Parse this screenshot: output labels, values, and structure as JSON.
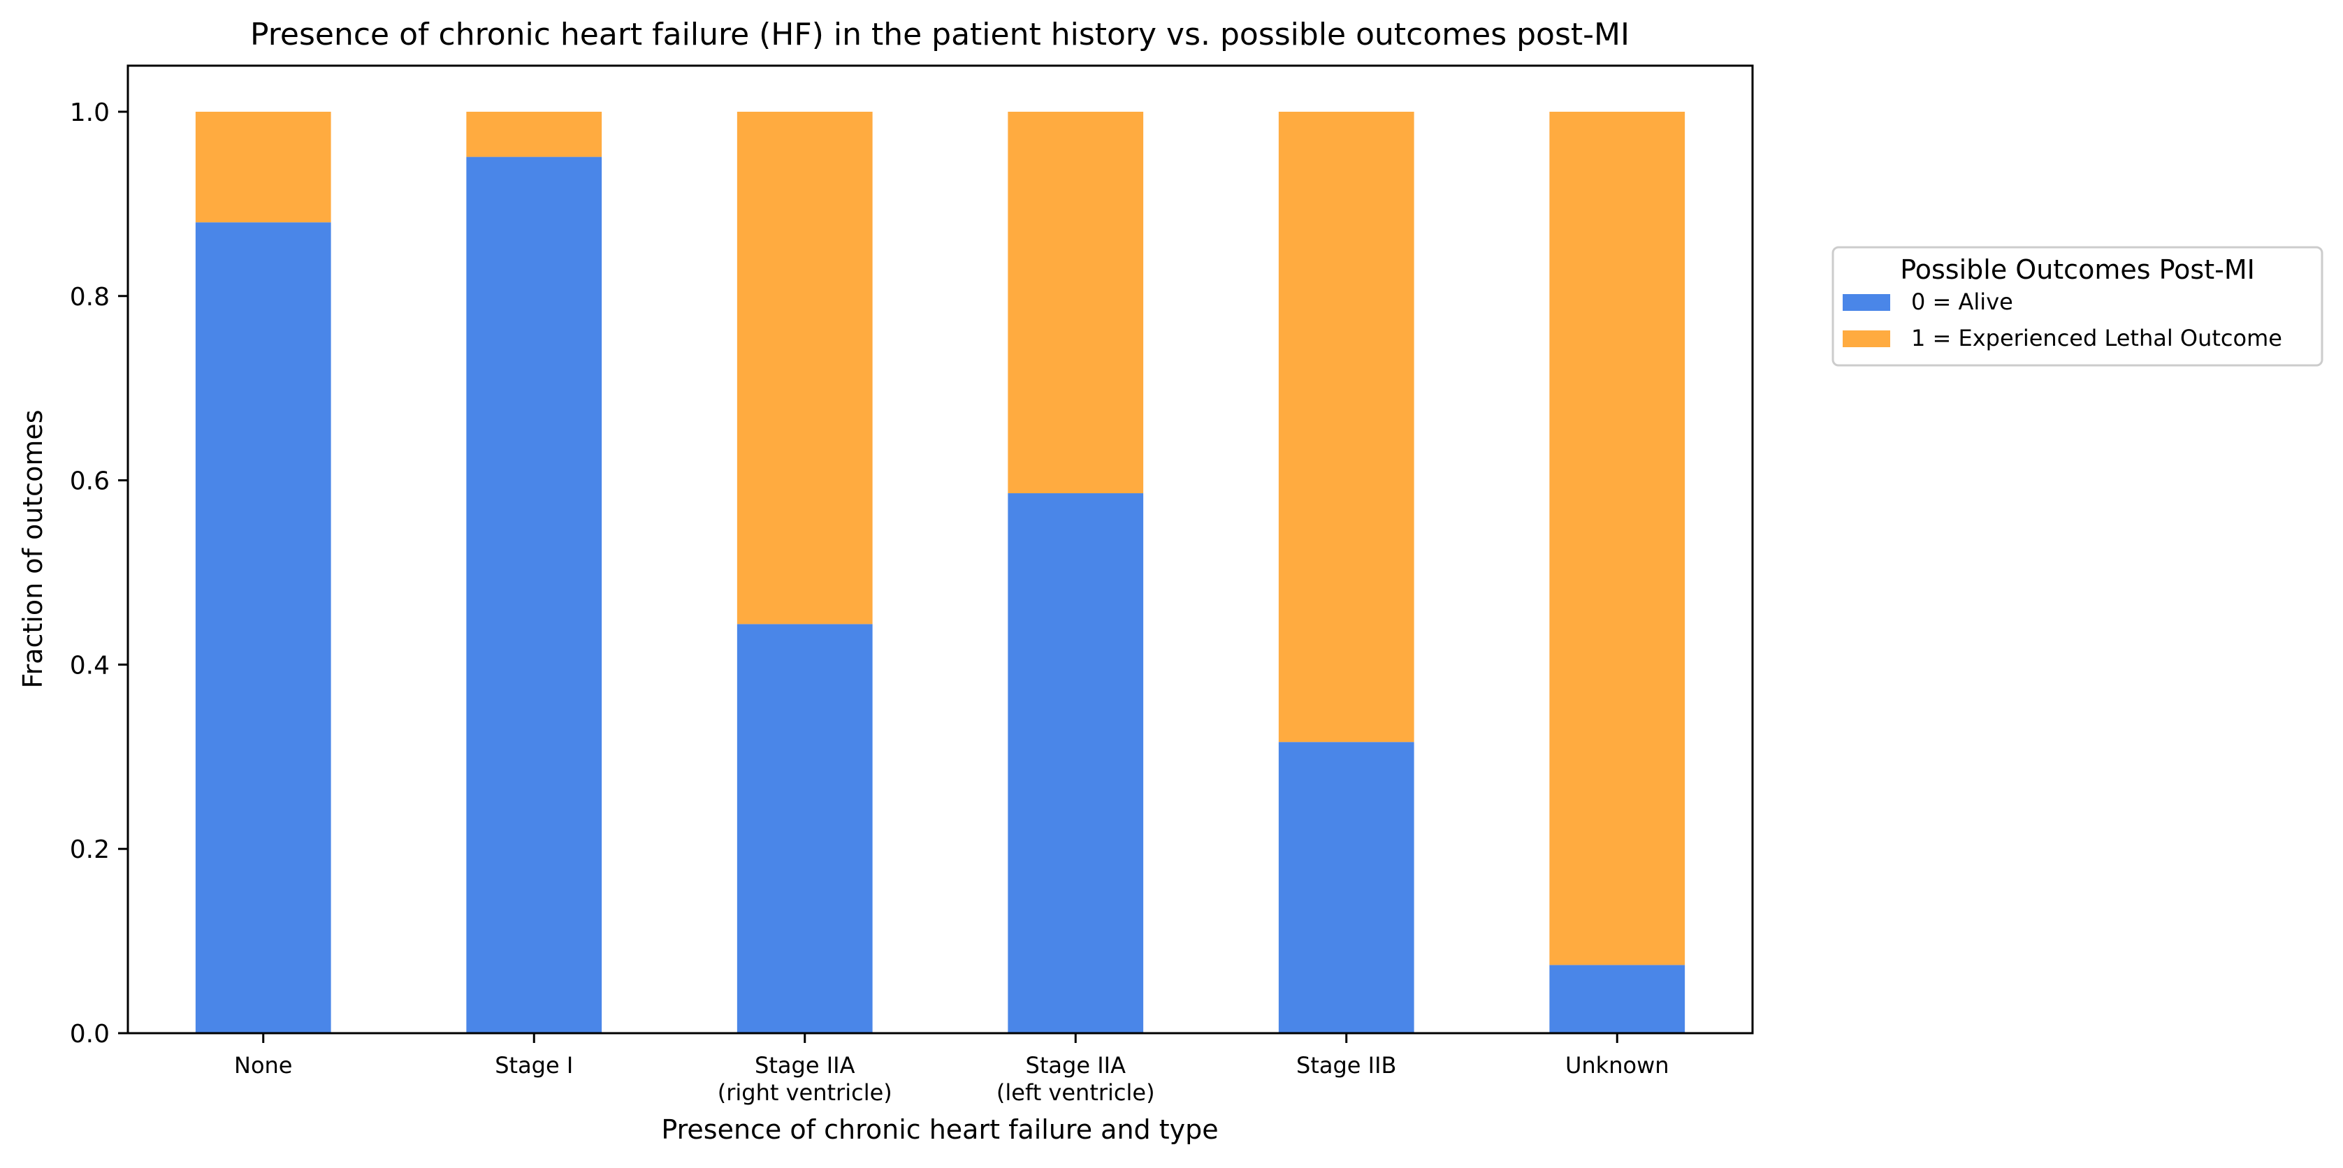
{
  "chart_data": {
    "type": "bar",
    "stacked": true,
    "title": "Presence of chronic heart failure (HF) in the patient history vs. possible outcomes post-MI",
    "xlabel": "Presence of chronic heart failure and type",
    "ylabel": "Fraction of outcomes",
    "ylim": [
      0,
      1.05
    ],
    "yticks": [
      "0.0",
      "0.2",
      "0.4",
      "0.6",
      "0.8",
      "1.0"
    ],
    "categories": [
      [
        "None"
      ],
      [
        "Stage I"
      ],
      [
        "Stage IIA",
        "(right ventricle)"
      ],
      [
        "Stage IIA",
        "(left ventricle)"
      ],
      [
        "Stage IIB"
      ],
      [
        "Unknown"
      ]
    ],
    "series": [
      {
        "name": "0 = Alive",
        "color": "#4a86e8",
        "values": [
          0.88,
          0.951,
          0.444,
          0.586,
          0.316,
          0.074
        ]
      },
      {
        "name": "1 = Experienced Lethal Outcome",
        "color": "#ffab40",
        "values": [
          0.12,
          0.049,
          0.556,
          0.414,
          0.684,
          0.926
        ]
      }
    ],
    "legend": {
      "title": "Possible Outcomes Post-MI",
      "placement": "right"
    },
    "grid": false
  }
}
